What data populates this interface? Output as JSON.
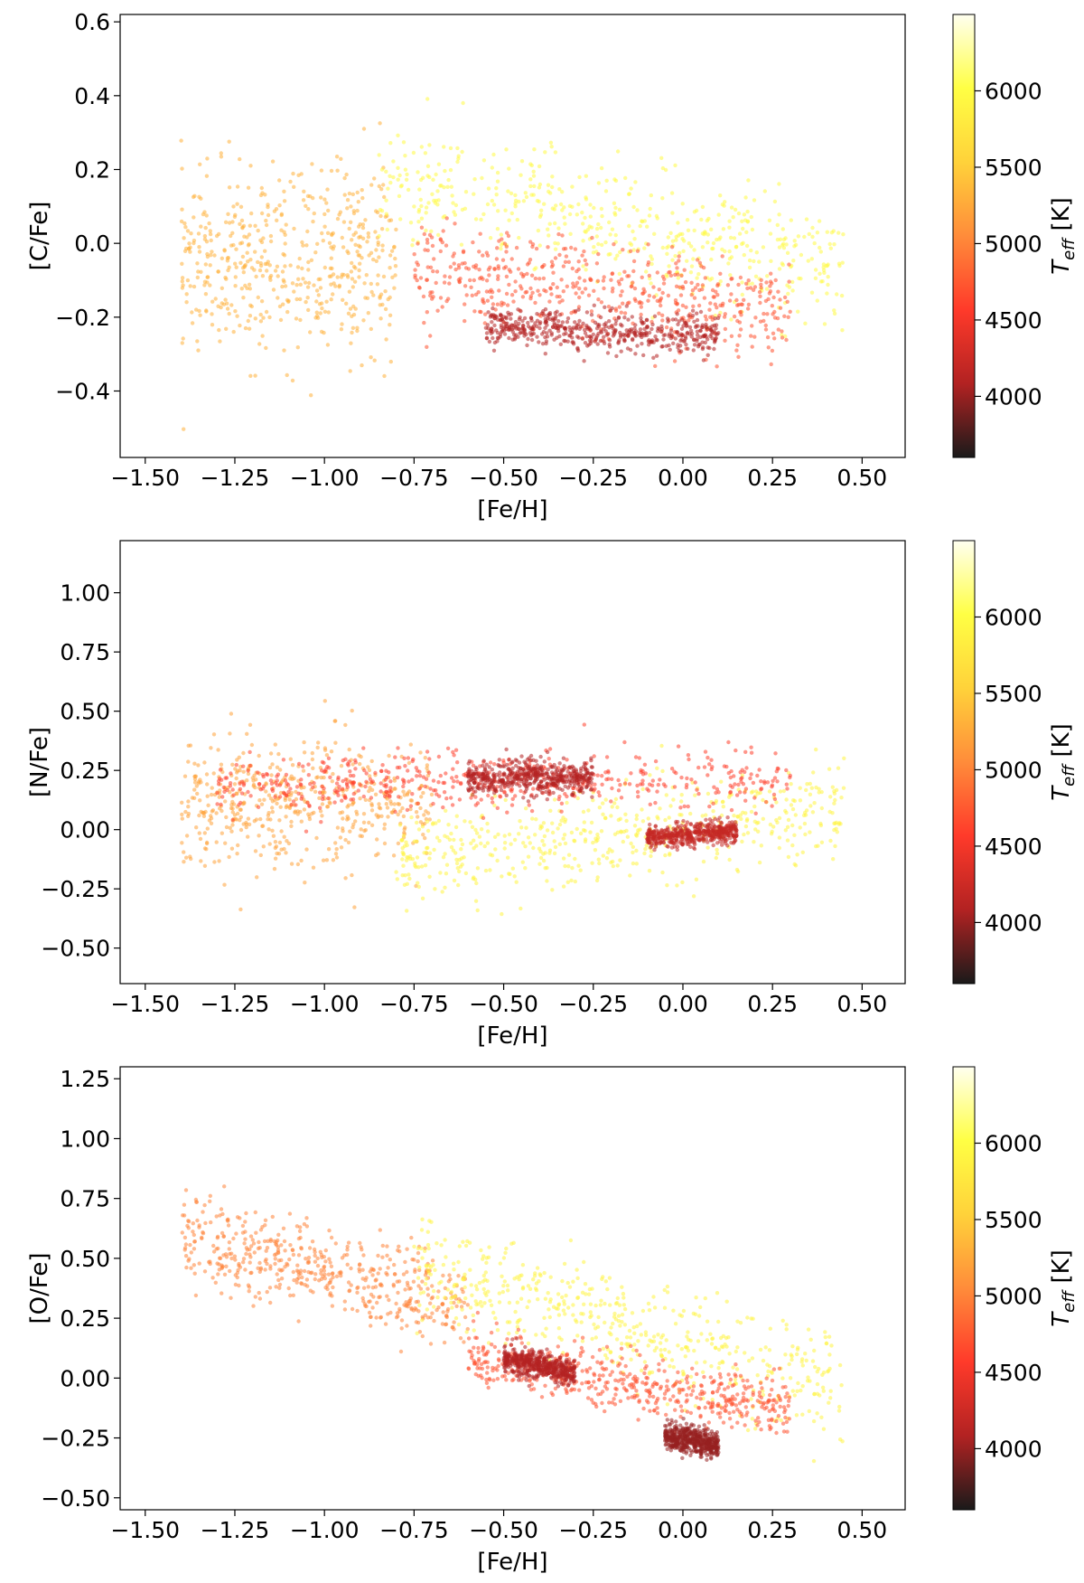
{
  "colorbar": {
    "label": "T_eff [K]",
    "label_main": "T",
    "label_sub": "eff",
    "label_unit": " [K]",
    "min": 3600,
    "max": 6500,
    "ticks": [
      "4000",
      "4500",
      "5000",
      "5500",
      "6000"
    ],
    "tick_values": [
      4000,
      4500,
      5000,
      5500,
      6000
    ],
    "colormap": [
      "#1a1a1a",
      "#b22222",
      "#ff3a2a",
      "#ff8c3a",
      "#ffd23a",
      "#ffff44",
      "#fffff0"
    ]
  },
  "chart_data": [
    {
      "type": "scatter",
      "title": "",
      "xlabel": "[Fe/H]",
      "ylabel": "[C/Fe]",
      "xlim": [
        -1.57,
        0.62
      ],
      "ylim": [
        -0.58,
        0.62
      ],
      "xticks": [
        "−1.50",
        "−1.25",
        "−1.00",
        "−0.75",
        "−0.50",
        "−0.25",
        "0.00",
        "0.25",
        "0.50"
      ],
      "xtick_values": [
        -1.5,
        -1.25,
        -1.0,
        -0.75,
        -0.5,
        -0.25,
        0.0,
        0.25,
        0.5
      ],
      "yticks": [
        "−0.4",
        "−0.2",
        "0.0",
        "0.2",
        "0.4",
        "0.6"
      ],
      "ytick_values": [
        -0.4,
        -0.2,
        0.0,
        0.2,
        0.4,
        0.6
      ],
      "clouds": [
        {
          "teff": 5300,
          "x_range": [
            -1.4,
            -0.8
          ],
          "y_center": -0.05,
          "y_spread": 0.28,
          "slope": 0.05
        },
        {
          "teff": 5950,
          "x_range": [
            -0.85,
            0.45
          ],
          "y_center": 0.05,
          "y_spread": 0.18,
          "slope": -0.18
        },
        {
          "teff": 4700,
          "x_range": [
            -0.75,
            0.3
          ],
          "y_center": -0.13,
          "y_spread": 0.14,
          "slope": -0.12
        },
        {
          "teff": 4100,
          "x_range": [
            -0.55,
            0.1
          ],
          "y_center": -0.24,
          "y_spread": 0.06,
          "slope": -0.05
        }
      ]
    },
    {
      "type": "scatter",
      "title": "",
      "xlabel": "[Fe/H]",
      "ylabel": "[N/Fe]",
      "xlim": [
        -1.57,
        0.62
      ],
      "ylim": [
        -0.65,
        1.22
      ],
      "xticks": [
        "−1.50",
        "−1.25",
        "−1.00",
        "−0.75",
        "−0.50",
        "−0.25",
        "0.00",
        "0.25",
        "0.50"
      ],
      "xtick_values": [
        -1.5,
        -1.25,
        -1.0,
        -0.75,
        -0.5,
        -0.25,
        0.0,
        0.25,
        0.5
      ],
      "yticks": [
        "−0.50",
        "−0.25",
        "0.00",
        "0.25",
        "0.50",
        "0.75",
        "1.00"
      ],
      "ytick_values": [
        -0.5,
        -0.25,
        0.0,
        0.25,
        0.5,
        0.75,
        1.0
      ],
      "clouds": [
        {
          "teff": 5200,
          "x_range": [
            -1.4,
            -0.7
          ],
          "y_center": 0.12,
          "y_spread": 0.3,
          "slope": 0.0
        },
        {
          "teff": 5900,
          "x_range": [
            -0.8,
            0.45
          ],
          "y_center": -0.02,
          "y_spread": 0.22,
          "slope": 0.18
        },
        {
          "teff": 4600,
          "x_range": [
            -1.3,
            0.3
          ],
          "y_center": 0.2,
          "y_spread": 0.14,
          "slope": 0.02
        },
        {
          "teff": 4100,
          "x_range": [
            -0.6,
            -0.25
          ],
          "y_center": 0.22,
          "y_spread": 0.08,
          "slope": 0.0
        },
        {
          "teff": 4200,
          "x_range": [
            -0.1,
            0.15
          ],
          "y_center": -0.02,
          "y_spread": 0.05,
          "slope": 0.1
        }
      ]
    },
    {
      "type": "scatter",
      "title": "",
      "xlabel": "[Fe/H]",
      "ylabel": "[O/Fe]",
      "xlim": [
        -1.57,
        0.62
      ],
      "ylim": [
        -0.55,
        1.3
      ],
      "xticks": [
        "−1.50",
        "−1.25",
        "−1.00",
        "−0.75",
        "−0.50",
        "−0.25",
        "0.00",
        "0.25",
        "0.50"
      ],
      "xtick_values": [
        -1.5,
        -1.25,
        -1.0,
        -0.75,
        -0.5,
        -0.25,
        0.0,
        0.25,
        0.5
      ],
      "yticks": [
        "−0.50",
        "−0.25",
        "0.00",
        "0.25",
        "0.50",
        "0.75",
        "1.00",
        "1.25"
      ],
      "ytick_values": [
        -0.5,
        -0.25,
        0.0,
        0.25,
        0.5,
        0.75,
        1.0,
        1.25
      ],
      "clouds": [
        {
          "teff": 5000,
          "x_range": [
            -1.4,
            -0.6
          ],
          "y_center": 0.45,
          "y_spread": 0.2,
          "slope": -0.35
        },
        {
          "teff": 5900,
          "x_range": [
            -0.75,
            0.45
          ],
          "y_center": 0.2,
          "y_spread": 0.24,
          "slope": -0.45
        },
        {
          "teff": 4700,
          "x_range": [
            -0.6,
            0.3
          ],
          "y_center": -0.02,
          "y_spread": 0.14,
          "slope": -0.25
        },
        {
          "teff": 4100,
          "x_range": [
            -0.5,
            -0.3
          ],
          "y_center": 0.05,
          "y_spread": 0.06,
          "slope": -0.3
        },
        {
          "teff": 4000,
          "x_range": [
            -0.05,
            0.1
          ],
          "y_center": -0.26,
          "y_spread": 0.06,
          "slope": -0.2
        }
      ]
    }
  ]
}
